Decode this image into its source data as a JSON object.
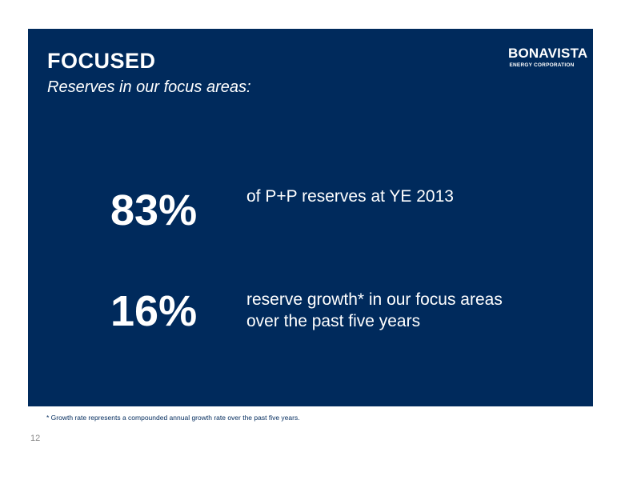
{
  "slide": {
    "title": "FOCUSED",
    "subtitle": "Reserves in our focus areas:",
    "logo": {
      "name": "BONAVISTA",
      "tagline": "ENERGY CORPORATION"
    },
    "stats": [
      {
        "value": "83%",
        "description_lines": [
          "of P+P reserves at YE 2013"
        ]
      },
      {
        "value": "16%",
        "description_lines": [
          "reserve growth* in our focus areas",
          "over the past five years"
        ]
      }
    ],
    "footnote": "* Growth rate represents a compounded annual growth rate over the past five years.",
    "page_number": "12"
  },
  "colors": {
    "panel_background": "#002a5c",
    "text_on_panel": "#ffffff",
    "footnote_text": "#002a5c",
    "page_number_text": "#8a8a8a"
  }
}
